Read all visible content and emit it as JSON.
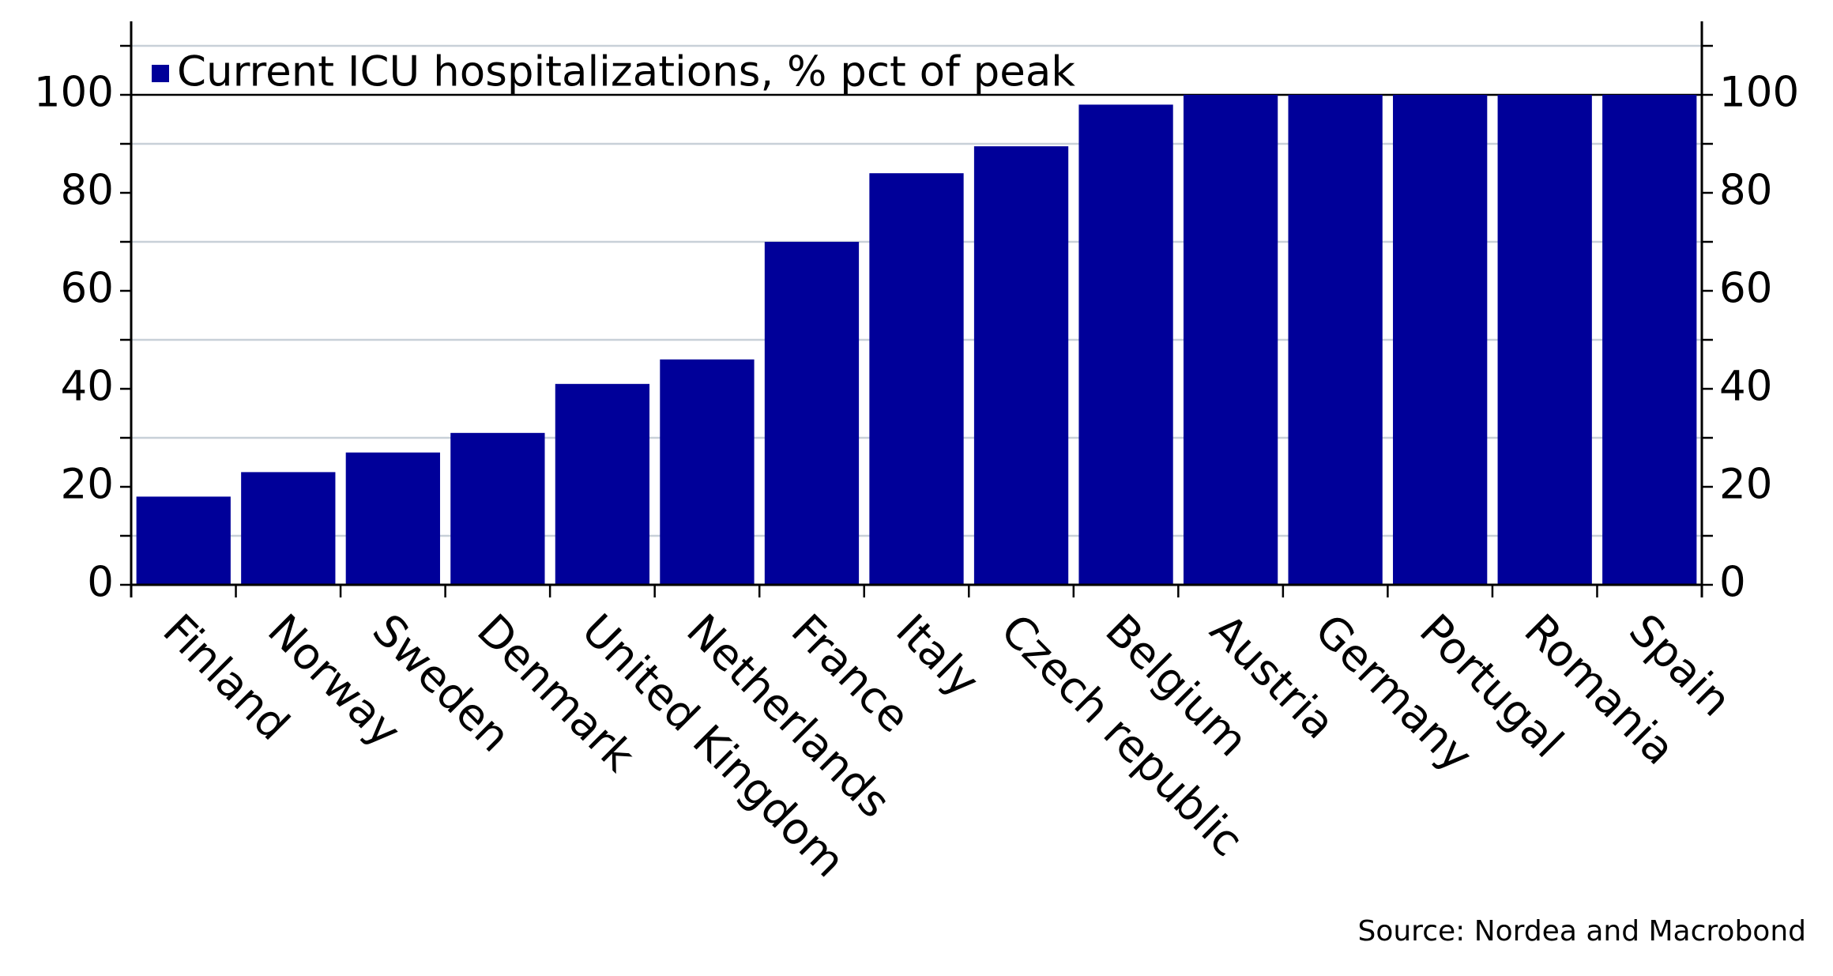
{
  "chart_data": {
    "type": "bar",
    "legend": "Current ICU hospitalizations, % pct of peak",
    "source": "Source: Nordea and Macrobond",
    "categories": [
      "Finland",
      "Norway",
      "Sweden",
      "Denmark",
      "United Kingdom",
      "Netherlands",
      "France",
      "Italy",
      "Czech republic",
      "Belgium",
      "Austria",
      "Germany",
      "Portugal",
      "Romania",
      "Spain"
    ],
    "values": [
      18,
      23,
      27,
      31,
      41,
      46,
      70,
      84,
      89.5,
      98,
      100,
      100,
      100,
      100,
      100
    ],
    "color": "#000099",
    "ylim": [
      0,
      115
    ],
    "yticks": [
      0,
      20,
      40,
      60,
      80,
      100
    ],
    "minor_yticks": [
      10,
      30,
      50,
      70,
      90,
      110
    ],
    "grid": true
  }
}
